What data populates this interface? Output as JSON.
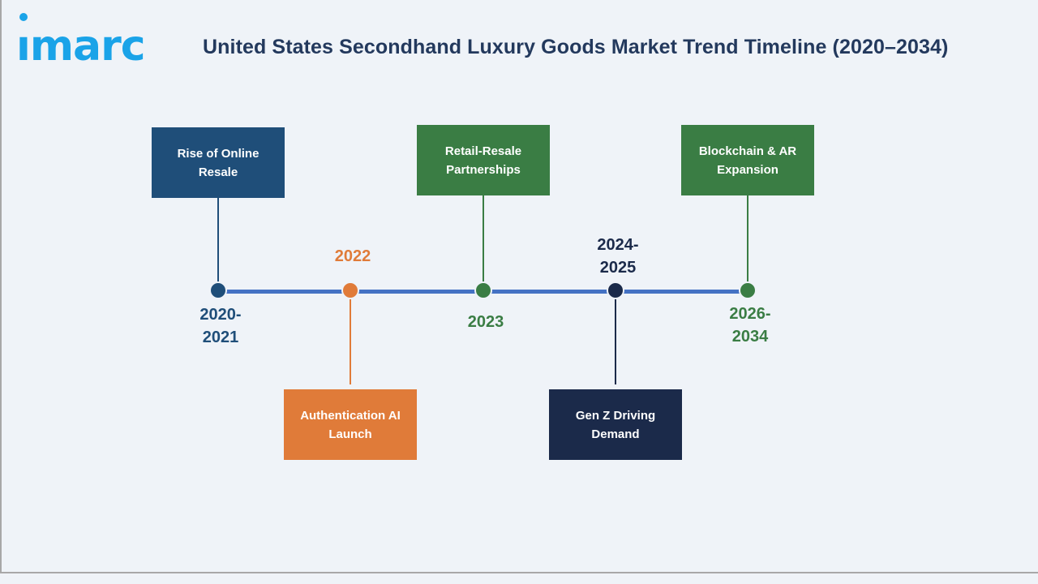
{
  "logo": {
    "text": "imarc",
    "color": "#1aa3e8"
  },
  "title": "United States Secondhand Luxury Goods Market Trend Timeline (2020–2034)",
  "colors": {
    "axis": "#4472c4",
    "navy": "#1f4e79",
    "orange": "#e07b39",
    "green": "#3a7d44",
    "dark_navy": "#1b2a4a"
  },
  "milestones": [
    {
      "year": "2020-\n2021",
      "label": "Rise of Online Resale",
      "color": "#1f4e79",
      "position": "above"
    },
    {
      "year": "2022",
      "label": "Authentication AI Launch",
      "color": "#e07b39",
      "position": "below"
    },
    {
      "year": "2023",
      "label": "Retail-Resale Partnerships",
      "color": "#3a7d44",
      "position": "above"
    },
    {
      "year": "2024-\n2025",
      "label": "Gen Z Driving Demand",
      "color": "#1b2a4a",
      "position": "below"
    },
    {
      "year": "2026-\n2034",
      "label": "Blockchain & AR Expansion",
      "color": "#3a7d44",
      "position": "above"
    }
  ]
}
